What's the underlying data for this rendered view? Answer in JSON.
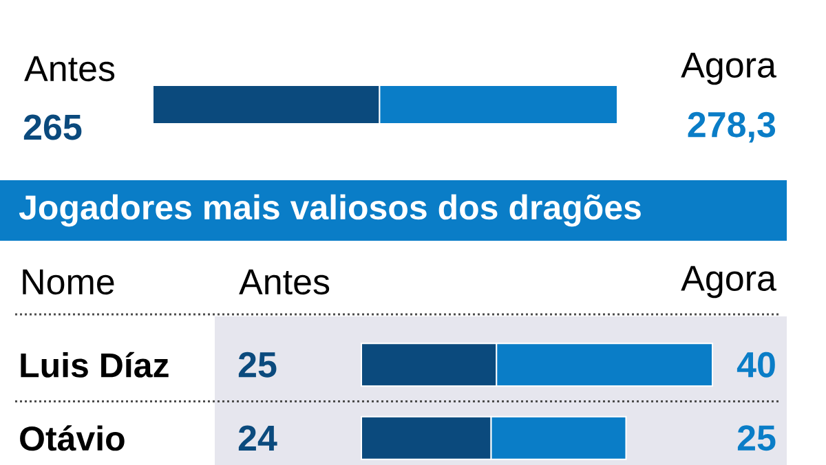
{
  "chart_data": [
    {
      "type": "bar",
      "orientation": "horizontal",
      "stacked": true,
      "categories": [
        null
      ],
      "series": [
        {
          "name": "Antes",
          "color": "#0b4a7d",
          "values": [
            265
          ],
          "value_labels": [
            "265"
          ]
        },
        {
          "name": "Agora",
          "color": "#0a7dc7",
          "values": [
            278.3
          ],
          "value_labels": [
            "278,3"
          ]
        }
      ]
    },
    {
      "type": "bar",
      "orientation": "horizontal",
      "title": "Jogadores mais valiosos dos dragões",
      "ylabel": "Nome",
      "categories": [
        "Luis Díaz",
        "Otávio"
      ],
      "stacked": true,
      "data_labels": true,
      "series": [
        {
          "name": "Antes",
          "color": "#0b4a7d",
          "values": [
            25,
            24
          ]
        },
        {
          "name": "Agora",
          "color": "#0a7dc7",
          "values": [
            40,
            25
          ]
        }
      ]
    }
  ]
}
